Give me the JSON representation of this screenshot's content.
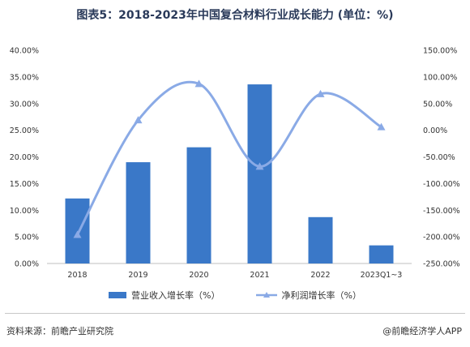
{
  "title": "图表5：2018-2023年中国复合材料行业成长能力 (单位：%)",
  "footer": {
    "source": "资料来源：前瞻产业研究院",
    "credit": "@前瞻经济学人APP"
  },
  "colors": {
    "bar": "#3a78c8",
    "line": "#8aaae6",
    "axis": "#bfbfbf"
  },
  "chart_data": {
    "type": "bar",
    "title": "图表5：2018-2023年中国复合材料行业成长能力 (单位：%)",
    "categories": [
      "2018",
      "2019",
      "2020",
      "2021",
      "2022",
      "2023Q1~3"
    ],
    "series": [
      {
        "name": "营业收入增长率（%）",
        "type": "bar",
        "axis": "left",
        "values": [
          12.2,
          19.0,
          21.8,
          33.6,
          8.7,
          3.4
        ]
      },
      {
        "name": "净利润增长率（%）",
        "type": "line",
        "axis": "right",
        "values": [
          -196,
          19,
          87,
          -68,
          68,
          6
        ]
      }
    ],
    "y_left": {
      "ylim": [
        0,
        40
      ],
      "ticks": [
        "0.00%",
        "5.00%",
        "10.00%",
        "15.00%",
        "20.00%",
        "25.00%",
        "30.00%",
        "35.00%",
        "40.00%"
      ]
    },
    "y_right": {
      "ylim": [
        -250,
        150
      ],
      "ticks": [
        "-250.00%",
        "-200.00%",
        "-150.00%",
        "-100.00%",
        "-50.00%",
        "0.00%",
        "50.00%",
        "100.00%",
        "150.00%"
      ]
    },
    "grid": false,
    "legend_position": "bottom"
  }
}
